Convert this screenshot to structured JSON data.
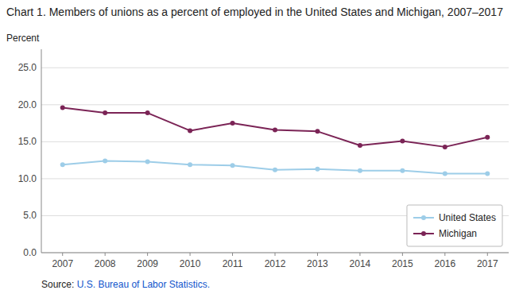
{
  "chart_data": {
    "type": "line",
    "title": "Chart 1. Members of unions as a percent of employed in the United States and Michigan, 2007–2017",
    "y_label": "Percent",
    "source": {
      "text": "Source: ",
      "link": "U.S. Bureau of Labor Statistics.",
      "color": "#1155CC"
    },
    "x": [
      2007,
      2008,
      2009,
      2010,
      2011,
      2012,
      2013,
      2014,
      2015,
      2016,
      2017
    ],
    "series": [
      {
        "name": "United States",
        "color": "#9DCDE8",
        "values": [
          11.9,
          12.4,
          12.3,
          11.9,
          11.8,
          11.2,
          11.3,
          11.1,
          11.1,
          10.7,
          10.7
        ]
      },
      {
        "name": "Michigan",
        "color": "#7B2456",
        "values": [
          19.6,
          18.9,
          18.9,
          16.5,
          17.5,
          16.6,
          16.4,
          14.5,
          15.1,
          14.3,
          15.6
        ]
      }
    ],
    "xlim": [
      2006.5,
      2017.5
    ],
    "xticks": [
      2007,
      2008,
      2009,
      2010,
      2011,
      2012,
      2013,
      2014,
      2015,
      2016,
      2017
    ],
    "ylim": [
      0.0,
      27.5
    ],
    "yticks": [
      {
        "value": 0.0,
        "label": "0.0"
      },
      {
        "value": 5.0,
        "label": "5.0"
      },
      {
        "value": 10.0,
        "label": "10.0"
      },
      {
        "value": 15.0,
        "label": "15.0"
      },
      {
        "value": 20.0,
        "label": "20.0"
      },
      {
        "value": 25.0,
        "label": "25.0"
      }
    ],
    "grid": "y",
    "legend": "lower right",
    "marker": "circle"
  }
}
